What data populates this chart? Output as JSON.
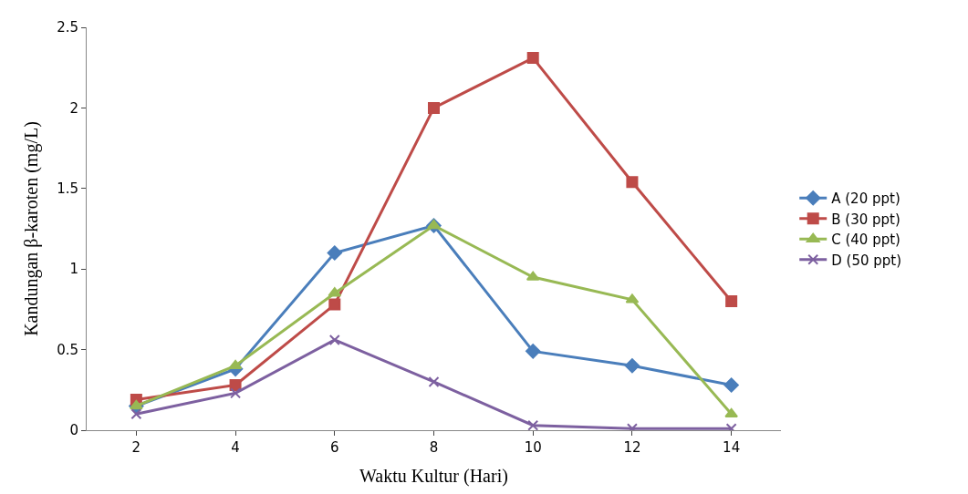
{
  "chart_data": {
    "type": "line",
    "xlabel": "Waktu Kultur (Hari)",
    "ylabel": "Kandungan β-karoten (mg/L)",
    "categories": [
      "2",
      "4",
      "6",
      "8",
      "10",
      "12",
      "14"
    ],
    "ylim": [
      0,
      2.5
    ],
    "yticks": [
      0,
      0.5,
      1,
      1.5,
      2,
      2.5
    ],
    "grid": false,
    "legend": "right",
    "series": [
      {
        "name": "A (20 ppt)",
        "color": "#4a7ebb",
        "marker": "diamond",
        "values": [
          0.15,
          0.38,
          1.1,
          1.27,
          0.49,
          0.4,
          0.28
        ]
      },
      {
        "name": "B (30 ppt)",
        "color": "#be4b48",
        "marker": "square",
        "values": [
          0.19,
          0.28,
          0.78,
          2.0,
          2.31,
          1.54,
          0.8
        ]
      },
      {
        "name": "C (40 ppt)",
        "color": "#98b954",
        "marker": "triangle",
        "values": [
          0.15,
          0.4,
          0.85,
          1.27,
          0.95,
          0.81,
          0.1
        ]
      },
      {
        "name": "D (50 ppt)",
        "color": "#7d60a0",
        "marker": "cross",
        "values": [
          0.1,
          0.23,
          0.56,
          0.3,
          0.03,
          0.01,
          0.01
        ]
      }
    ]
  }
}
